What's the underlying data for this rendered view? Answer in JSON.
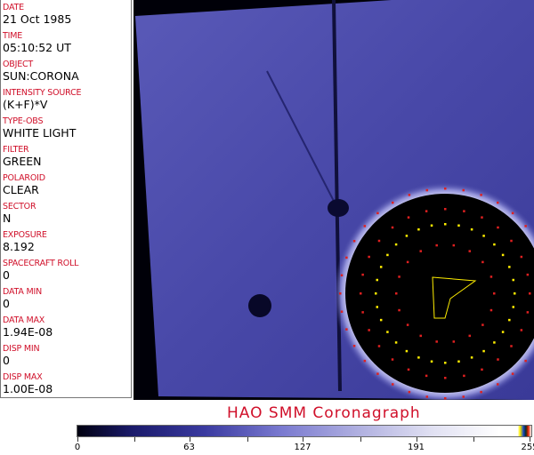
{
  "metadata": [
    {
      "label": "DATE",
      "value": "21 Oct 1985"
    },
    {
      "label": "TIME",
      "value": "05:10:52 UT"
    },
    {
      "label": "OBJECT",
      "value": "SUN:CORONA"
    },
    {
      "label": "INTENSITY SOURCE",
      "value": "(K+F)*V"
    },
    {
      "label": "TYPE-OBS",
      "value": "WHITE LIGHT"
    },
    {
      "label": "FILTER",
      "value": "GREEN"
    },
    {
      "label": "POLAROID",
      "value": "CLEAR"
    },
    {
      "label": "SECTOR",
      "value": "N"
    },
    {
      "label": "EXPOSURE",
      "value": "8.192"
    },
    {
      "label": "SPACECRAFT ROLL",
      "value": "0"
    },
    {
      "label": "DATA MIN",
      "value": "0"
    },
    {
      "label": "DATA MAX",
      "value": "1.94E-08"
    },
    {
      "label": "DISP MIN",
      "value": "0"
    },
    {
      "label": "DISP MAX",
      "value": "1.00E-08"
    }
  ],
  "title": "HAO   SMM  Coronagraph",
  "colorbar": {
    "min": 0,
    "max": 255,
    "ticks": [
      "0",
      "63",
      "127",
      "191",
      "255"
    ]
  },
  "colors": {
    "label": "#d0102a",
    "field": "#3a3aa0",
    "occulter": "#000000",
    "marker_red": "#e02020",
    "marker_yellow": "#ffee00"
  }
}
